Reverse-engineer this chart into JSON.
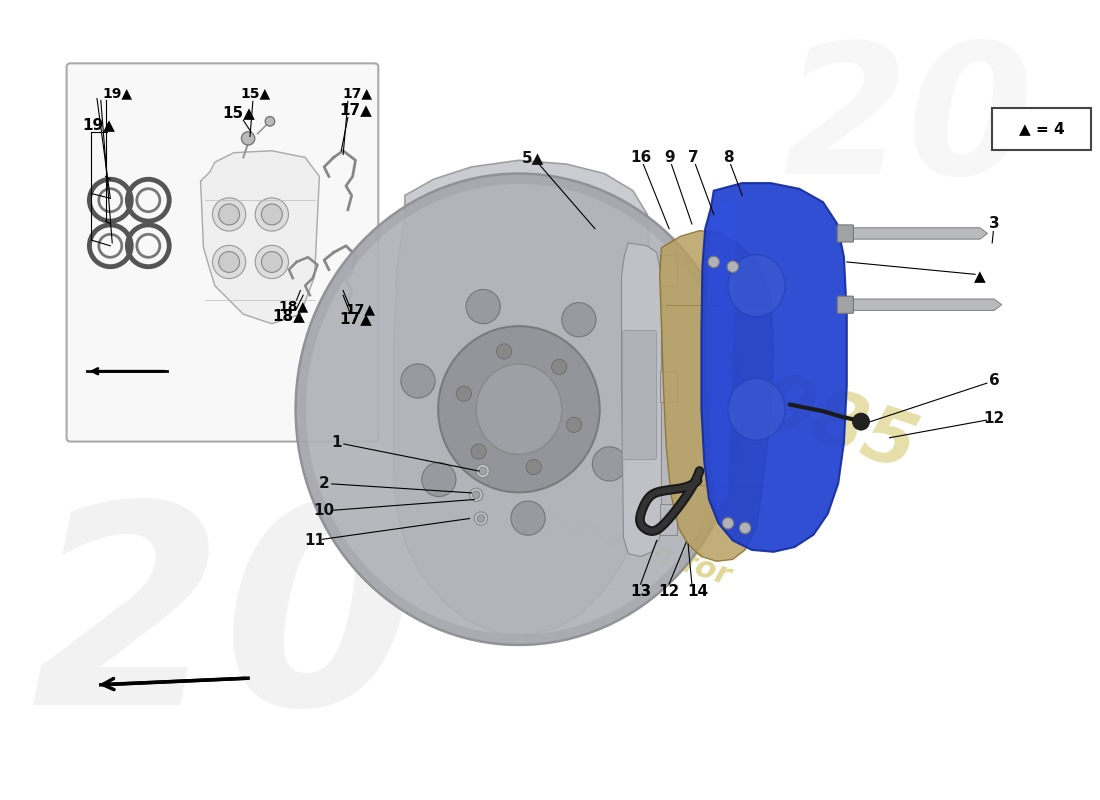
{
  "bg": "#ffffff",
  "figsize": [
    11.0,
    8.0
  ],
  "dpi": 100,
  "watermark_color": "#c8b840",
  "legend_text": "▲ = 4",
  "blue_caliper": "#1e40d0",
  "caliper_dark": "#162ca0",
  "bracket_color": "#b8a060",
  "bracket_dark": "#8a7030",
  "disc_color": "#b0b2b8",
  "disc_dark": "#888a90",
  "shield_color": "#c5c7cc",
  "pad_color": "#c0c2c8",
  "hose_color": "#1a1a1a",
  "grey_mid": "#a0a2a8"
}
